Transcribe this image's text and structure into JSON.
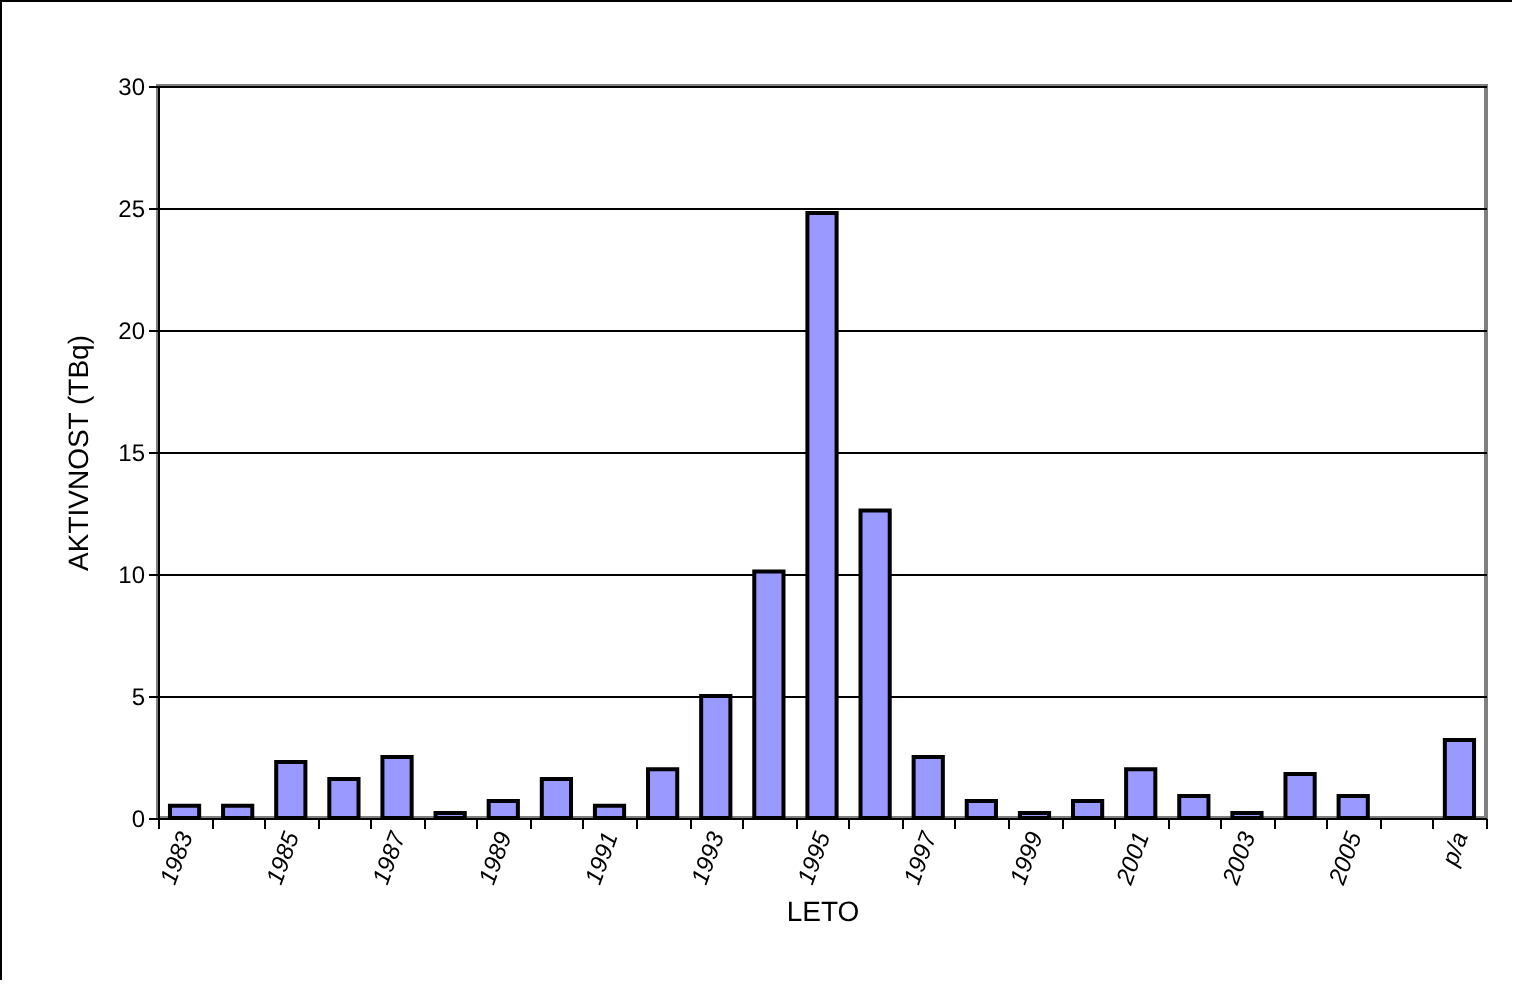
{
  "chart_data": {
    "type": "bar",
    "xlabel": "LETO",
    "ylabel": "AKTIVNOST  (TBq)",
    "categories": [
      "1983",
      null,
      "1985",
      null,
      "1987",
      null,
      "1989",
      null,
      "1991",
      null,
      "1993",
      null,
      "1995",
      null,
      "1997",
      null,
      "1999",
      null,
      "2001",
      null,
      "2003",
      null,
      "2005",
      null,
      "p/a"
    ],
    "values": [
      0.5,
      0.5,
      2.3,
      1.6,
      2.5,
      0.2,
      0.7,
      1.6,
      0.5,
      2.0,
      5.0,
      10.1,
      24.8,
      12.6,
      2.5,
      0.7,
      0.2,
      0.7,
      2.0,
      0.9,
      0.2,
      1.8,
      0.9,
      null,
      3.2
    ],
    "color": "#9999ff",
    "ylim": [
      0,
      30
    ],
    "yticks": [
      0,
      5,
      10,
      15,
      20,
      25,
      30
    ],
    "grid": "y"
  }
}
